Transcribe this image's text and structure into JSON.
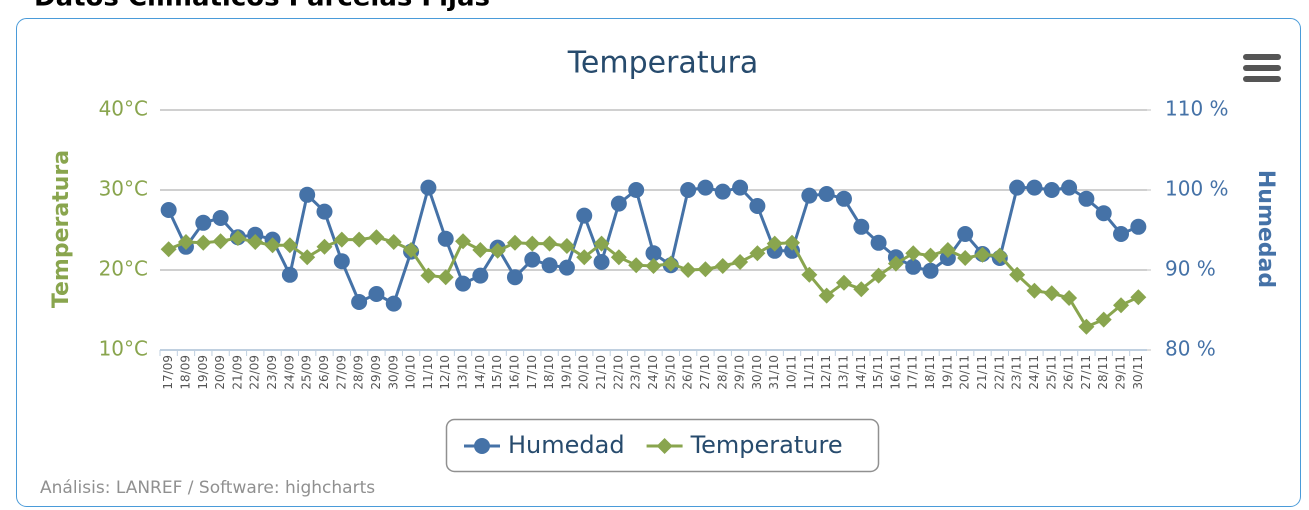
{
  "header": {
    "title": "Datos Climáticos Parcelas Fijas"
  },
  "chart_data": {
    "type": "line",
    "title": "Temperatura",
    "credits": "Análisis: LANREF / Software: highcharts",
    "ylabel": "Temperatura",
    "y2label": "Humedad",
    "categories": [
      "17/09",
      "18/09",
      "19/09",
      "20/09",
      "21/09",
      "22/09",
      "23/09",
      "24/09",
      "25/09",
      "26/09",
      "27/09",
      "28/09",
      "29/09",
      "30/09",
      "10/10",
      "11/10",
      "12/10",
      "13/10",
      "14/10",
      "15/10",
      "16/10",
      "17/10",
      "18/10",
      "19/10",
      "20/10",
      "21/10",
      "22/10",
      "23/10",
      "24/10",
      "25/10",
      "26/10",
      "27/10",
      "28/10",
      "29/10",
      "30/10",
      "31/10",
      "10/11",
      "11/11",
      "12/11",
      "13/11",
      "14/11",
      "15/11",
      "16/11",
      "17/11",
      "18/11",
      "19/11",
      "20/11",
      "21/11",
      "22/11",
      "23/11",
      "24/11",
      "25/11",
      "26/11",
      "27/11",
      "28/11",
      "29/11",
      "30/11"
    ],
    "series": [
      {
        "name": "Humedad",
        "color": "#4572A7",
        "axis": "y2",
        "marker": "circle",
        "values": [
          97.5,
          92.9,
          95.9,
          96.5,
          94.1,
          94.4,
          93.8,
          89.4,
          99.4,
          97.3,
          91.1,
          86,
          87,
          85.8,
          92.3,
          100.3,
          93.9,
          88.3,
          89.3,
          92.8,
          89.1,
          91.3,
          90.6,
          90.3,
          96.8,
          91,
          98.3,
          100,
          92.1,
          90.6,
          100,
          100.3,
          99.8,
          100.3,
          98,
          92.4,
          92.4,
          99.3,
          99.5,
          98.9,
          95.4,
          93.4,
          91.6,
          90.4,
          89.9,
          91.5,
          94.5,
          92,
          91.5,
          100.3,
          100.3,
          100,
          100.3,
          98.9,
          97.1,
          94.5,
          95.4
        ]
      },
      {
        "name": "Temperature",
        "color": "#89A54E",
        "axis": "y",
        "marker": "diamond",
        "values": [
          22.6,
          23.5,
          23.4,
          23.6,
          24,
          23.5,
          23.1,
          23.1,
          21.6,
          22.9,
          23.8,
          23.8,
          24.1,
          23.5,
          22.5,
          19.3,
          19.1,
          23.6,
          22.5,
          22.4,
          23.4,
          23.3,
          23.3,
          23,
          21.6,
          23.3,
          21.6,
          20.6,
          20.5,
          20.8,
          20,
          20.1,
          20.5,
          21,
          22.1,
          23.3,
          23.4,
          19.4,
          16.8,
          18.4,
          17.6,
          19.3,
          20.8,
          22.1,
          21.8,
          22.5,
          21.5,
          21.9,
          21.8,
          19.4,
          17.4,
          17.1,
          16.5,
          12.9,
          13.8,
          15.6,
          16.6
        ]
      }
    ],
    "ylim": [
      10,
      40
    ],
    "yticks": [
      {
        "value": 10,
        "label": "10°C"
      },
      {
        "value": 20,
        "label": "20°C"
      },
      {
        "value": 30,
        "label": "30°C"
      },
      {
        "value": 40,
        "label": "40°C"
      }
    ],
    "y2lim": [
      80,
      110
    ],
    "y2ticks": [
      {
        "value": 80,
        "label": "80 %"
      },
      {
        "value": 90,
        "label": "90 %"
      },
      {
        "value": 100,
        "label": "100 %"
      },
      {
        "value": 110,
        "label": "110 %"
      }
    ],
    "grid": true
  }
}
